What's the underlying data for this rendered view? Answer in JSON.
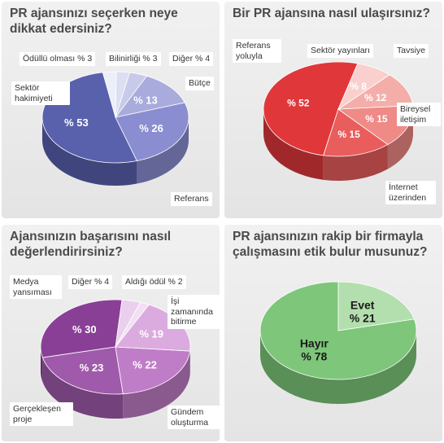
{
  "chart_data": [
    {
      "type": "pie",
      "title": "PR ajansınızı seçerken neye dikkat edersiniz?",
      "slices": [
        {
          "name": "Sektör hakimiyeti",
          "value": 53,
          "value_label": "% 53",
          "color": "#5961ad"
        },
        {
          "name": "Referans",
          "value": 26,
          "value_label": "% 26",
          "color": "#8a8ed0"
        },
        {
          "name": "Bütçe",
          "value": 13,
          "value_label": "% 13",
          "color": "#a8abdc"
        },
        {
          "name": "Diğer",
          "value": 4,
          "value_label": "Diğer % 4",
          "color": "#c8cae9"
        },
        {
          "name": "Bilinirliği",
          "value": 3,
          "value_label": "Bilinirliği % 3",
          "color": "#dcdef1"
        },
        {
          "name": "Ödüllü olması",
          "value": 3,
          "value_label": "Ödüllü olması % 3",
          "color": "#eceef9"
        }
      ],
      "callouts": [
        "Sektör hakimiyeti",
        "Referans",
        "Bütçe",
        "Diğer % 4",
        "Bilinirliği % 3",
        "Ödüllü olması % 3"
      ]
    },
    {
      "type": "pie",
      "title": "Bir PR ajansına nasıl ulaşırsınız?",
      "slices": [
        {
          "name": "Referans yoluyla",
          "value": 52,
          "value_label": "% 52",
          "color": "#e0383a"
        },
        {
          "name": "İnternet üzerinden",
          "value": 15,
          "value_label": "% 15",
          "color": "#e95d5d"
        },
        {
          "name": "Bireysel iletişim",
          "value": 15,
          "value_label": "% 15",
          "color": "#ef8a86"
        },
        {
          "name": "Tavsiye",
          "value": 12,
          "value_label": "% 12",
          "color": "#f4aeaa"
        },
        {
          "name": "Sektör yayınları",
          "value": 8,
          "value_label": "% 8",
          "color": "#f9d0cd"
        }
      ],
      "callouts": [
        "Referans yoluyla",
        "Sektör yayınları",
        "Tavsiye",
        "Bireysel iletişim",
        "İnternet üzerinden"
      ]
    },
    {
      "type": "pie",
      "title": "Ajansınızın başarısını nasıl değerlendirirsiniz?",
      "slices": [
        {
          "name": "Medya yansıması",
          "value": 30,
          "value_label": "% 30",
          "color": "#8a3f96"
        },
        {
          "name": "Gerçekleşen proje",
          "value": 23,
          "value_label": "% 23",
          "color": "#a05aab"
        },
        {
          "name": "Gündem oluşturma",
          "value": 22,
          "value_label": "% 22",
          "color": "#c07dc7"
        },
        {
          "name": "İşi zamanında bitirme",
          "value": 19,
          "value_label": "% 19",
          "color": "#dbabdf"
        },
        {
          "name": "Aldığı ödül",
          "value": 2,
          "value_label": "Aldığı ödül % 2",
          "color": "#f3e0f4"
        },
        {
          "name": "Diğer",
          "value": 4,
          "value_label": "Diğer % 4",
          "color": "#ead0ed"
        }
      ],
      "callouts": [
        "Medya yansıması",
        "Diğer % 4",
        "Aldığı ödül % 2",
        "İşi zamanında bitirme",
        "Gerçekleşen proje",
        "Gündem oluşturma"
      ]
    },
    {
      "type": "pie",
      "title": "PR ajansınızın rakip bir firmayla çalışmasını etik bulur musunuz?",
      "slices": [
        {
          "name": "Hayır",
          "value": 78,
          "value_label": "% 78",
          "color": "#7dc67a"
        },
        {
          "name": "Evet",
          "value": 21,
          "value_label": "% 21",
          "color": "#b3dfae"
        }
      ],
      "callouts": []
    }
  ],
  "colors": {
    "panel_bg": "#ececec",
    "title_text": "#4a4a4a",
    "label_bg": "#ffffff"
  }
}
